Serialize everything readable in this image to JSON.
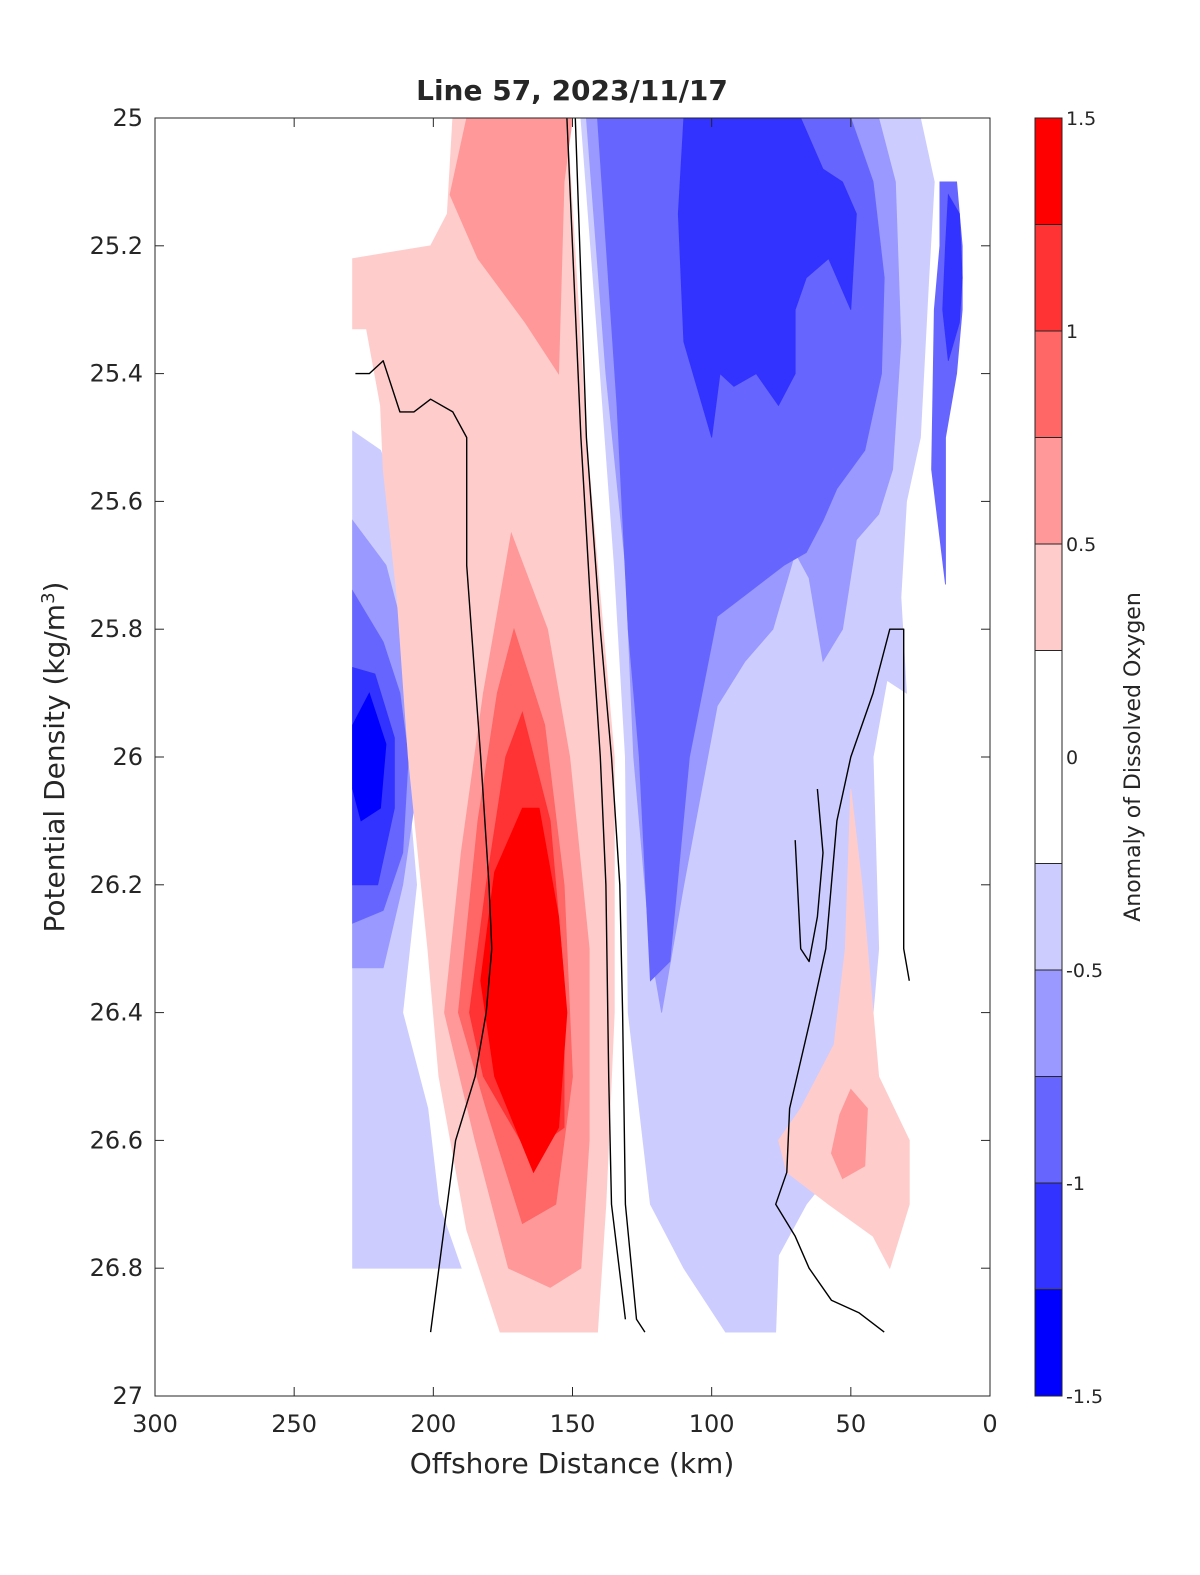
{
  "chart_data": {
    "type": "contour",
    "title": "Line 57, 2023/11/17",
    "xlabel": "Offshore Distance (km)",
    "ylabel_main": "Potential Density (kg/m",
    "ylabel_sup": "3",
    "ylabel_close": ")",
    "xlim": [
      300,
      0
    ],
    "ylim": [
      25,
      27
    ],
    "y_reversed": true,
    "x_ticks": [
      "300",
      "250",
      "200",
      "150",
      "100",
      "50",
      "0"
    ],
    "y_ticks": [
      "25",
      "25.2",
      "25.4",
      "25.6",
      "25.8",
      "26",
      "26.2",
      "26.4",
      "26.6",
      "26.8",
      "27"
    ],
    "colorbar": {
      "label": "Anomaly of Dissolved Oxygen",
      "range": [
        -1.5,
        1.5
      ],
      "ticks": [
        "1.5",
        "1",
        "0.5",
        "0",
        "-0.5",
        "-1",
        "-1.5"
      ],
      "levels": [
        -1.5,
        -1.25,
        -1.0,
        -0.75,
        -0.5,
        -0.25,
        0.25,
        0.5,
        0.75,
        1.0,
        1.25,
        1.5
      ],
      "colors": [
        "#0000ff",
        "#3333ff",
        "#6666ff",
        "#9999ff",
        "#ccccff",
        "#ffffff",
        "#ffcccc",
        "#ff9999",
        "#ff6666",
        "#ff3333",
        "#ff0000"
      ]
    },
    "grid": false,
    "sections": [
      "blue_offshore_core",
      "red_core_150_200km",
      "blue_nearshore_column",
      "pink_nearshore_patch"
    ],
    "features": [
      {
        "name": "offshore-low",
        "center_x": 222,
        "center_y": 25.98,
        "min_anomaly": -1.5
      },
      {
        "name": "midline-high",
        "center_x": 165,
        "center_y": 26.35,
        "max_anomaly": 1.5
      },
      {
        "name": "nearshore-low",
        "center_x": 90,
        "center_y": 25.25,
        "min_anomaly": -1.25
      },
      {
        "name": "coastal-low",
        "center_x": 10,
        "center_y": 25.25,
        "min_anomaly": -1.5
      },
      {
        "name": "nearshore-high",
        "center_x": 47,
        "center_y": 26.58,
        "max_anomaly": 0.75
      }
    ]
  }
}
